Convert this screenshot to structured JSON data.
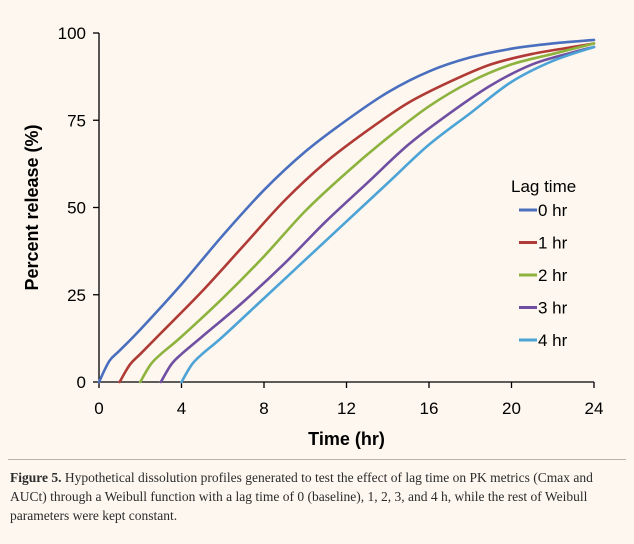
{
  "chart_data": {
    "type": "line",
    "title": "",
    "xlabel": "Time (hr)",
    "ylabel": "Percent release (%)",
    "xlim": [
      0,
      24
    ],
    "ylim": [
      0,
      100
    ],
    "xticks": [
      0,
      4,
      8,
      12,
      16,
      20,
      24
    ],
    "yticks": [
      0,
      25,
      50,
      75,
      100
    ],
    "grid": false,
    "legend_title": "Lag time",
    "legend_position": "right",
    "x": [
      0,
      2,
      4,
      6,
      8,
      10,
      12,
      14,
      16,
      18,
      20,
      22,
      24
    ],
    "series": [
      {
        "name": "0 hr",
        "color": "#4a6fbe",
        "lag": 0,
        "x": [
          0,
          0.5,
          1,
          2,
          4,
          6,
          8,
          10,
          12,
          14,
          16,
          18,
          20,
          22,
          24
        ],
        "values": [
          0,
          6,
          9,
          15,
          28,
          42,
          55,
          66,
          75,
          83,
          89,
          93,
          95.5,
          97,
          98
        ]
      },
      {
        "name": "1 hr",
        "color": "#b03a35",
        "lag": 1,
        "x": [
          1,
          1.5,
          2,
          3,
          5,
          7,
          9,
          11,
          13,
          15,
          17,
          19,
          21,
          23,
          24
        ],
        "values": [
          0,
          5,
          8,
          14,
          26,
          39,
          52,
          63,
          72,
          80,
          86,
          91,
          94,
          96,
          97
        ]
      },
      {
        "name": "2 hr",
        "color": "#8db33e",
        "lag": 2,
        "x": [
          2,
          2.5,
          3,
          4,
          6,
          8,
          10,
          12,
          14,
          16,
          18,
          20,
          22,
          24
        ],
        "values": [
          0,
          5,
          8,
          13,
          24,
          36,
          49,
          60,
          70,
          79,
          86,
          91,
          94,
          97
        ]
      },
      {
        "name": "3 hr",
        "color": "#6f4fa2",
        "lag": 3,
        "x": [
          3,
          3.5,
          4,
          5,
          7,
          9,
          11,
          13,
          15,
          17,
          19,
          21,
          23,
          24
        ],
        "values": [
          0,
          5,
          8,
          13,
          23,
          34,
          46,
          57,
          68,
          77,
          85,
          91,
          94.5,
          96
        ]
      },
      {
        "name": "4 hr",
        "color": "#4ca3d6",
        "lag": 4,
        "x": [
          4,
          4.5,
          5,
          6,
          8,
          10,
          12,
          14,
          16,
          18,
          20,
          22,
          24
        ],
        "values": [
          0,
          5,
          8,
          13,
          24,
          35,
          46,
          57,
          68,
          77,
          86,
          92,
          96
        ]
      }
    ]
  },
  "caption": {
    "label": "Figure 5.",
    "text": "Hypothetical dissolution profiles generated to test the effect of lag time on PK metrics (Cmax and AUCt) through a Weibull function with a lag time of 0 (baseline), 1, 2, 3, and 4 h, while the rest of Weibull parameters were kept constant."
  }
}
